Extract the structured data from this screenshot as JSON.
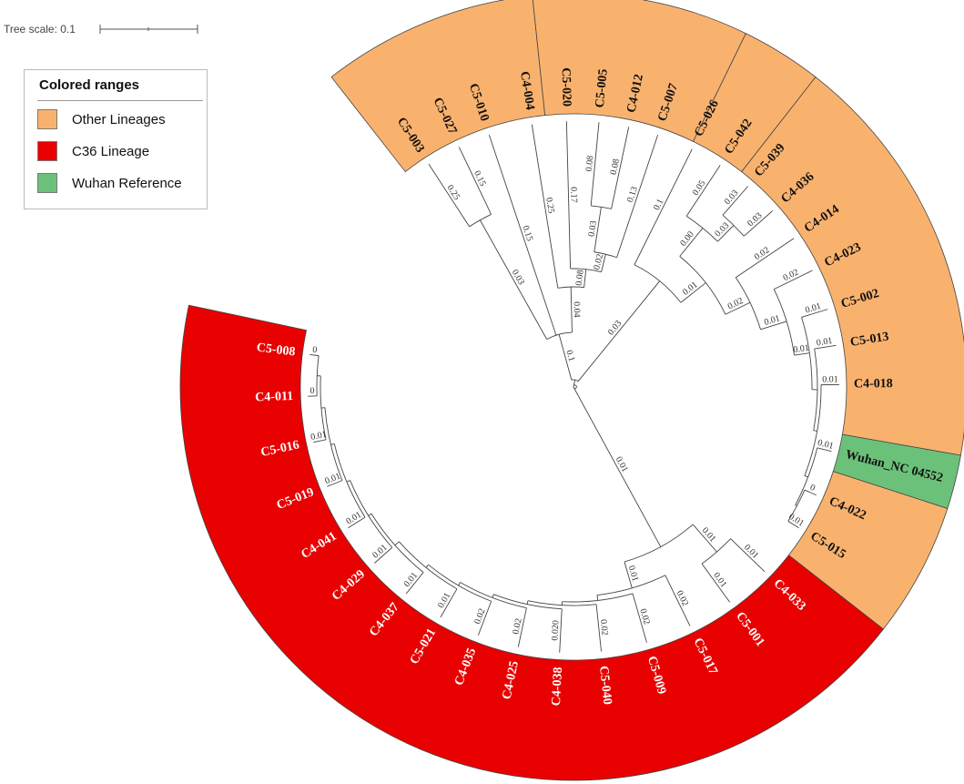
{
  "tree_scale": {
    "label": "Tree scale: 0.1"
  },
  "legend": {
    "title": "Colored ranges",
    "items": [
      {
        "label": "Other Lineages",
        "color": "#f9b26e"
      },
      {
        "label": "C36 Lineage",
        "color": "#e90000"
      },
      {
        "label": "Wuhan Reference",
        "color": "#6cc17a"
      }
    ]
  },
  "ranges": [
    {
      "group": "other",
      "color": "#f9b26e",
      "start_deg": 232,
      "end_deg": 264
    },
    {
      "group": "other",
      "color": "#f9b26e",
      "start_deg": 264,
      "end_deg": 296
    },
    {
      "group": "other",
      "color": "#f9b26e",
      "start_deg": 296,
      "end_deg": 308
    },
    {
      "group": "other",
      "color": "#f9b26e",
      "start_deg": 308,
      "end_deg": 370
    },
    {
      "group": "wuhan",
      "color": "#6cc17a",
      "start_deg": 370,
      "end_deg": 378
    },
    {
      "group": "other",
      "color": "#f9b26e",
      "start_deg": 378,
      "end_deg": 398
    },
    {
      "group": "c36",
      "color": "#e90000",
      "start_deg": 398,
      "end_deg": 552
    }
  ],
  "leaves": [
    {
      "name": "C5-003",
      "angle_deg": 237,
      "group": "other",
      "branch_length": "0.25"
    },
    {
      "name": "C5-027",
      "angle_deg": 244.5,
      "group": "other",
      "branch_length": "0.15"
    },
    {
      "name": "C5-010",
      "angle_deg": 251.5,
      "group": "other",
      "branch_length": "0.15"
    },
    {
      "name": "C4-004",
      "angle_deg": 261,
      "group": "other",
      "branch_length": "0.25"
    },
    {
      "name": "C5-020",
      "angle_deg": 268.5,
      "group": "other",
      "branch_length": "0.17"
    },
    {
      "name": "C5-005",
      "angle_deg": 275.5,
      "group": "other",
      "branch_length": "0.08"
    },
    {
      "name": "C4-012",
      "angle_deg": 282,
      "group": "other",
      "branch_length": "0.08"
    },
    {
      "name": "C5-007",
      "angle_deg": 288.5,
      "group": "other",
      "branch_length": "0.13"
    },
    {
      "name": "C5-026",
      "angle_deg": 296.5,
      "group": "other",
      "branch_length": "0.1"
    },
    {
      "name": "C5-042",
      "angle_deg": 303.5,
      "group": "other",
      "branch_length": "0.05"
    },
    {
      "name": "C5-039",
      "angle_deg": 311,
      "group": "other",
      "branch_length": "0.03"
    },
    {
      "name": "C4-036",
      "angle_deg": 318.5,
      "group": "other",
      "branch_length": "0.03"
    },
    {
      "name": "C4-014",
      "angle_deg": 326,
      "group": "other",
      "branch_length": "0.02"
    },
    {
      "name": "C4-023",
      "angle_deg": 334,
      "group": "other",
      "branch_length": "0.02"
    },
    {
      "name": "C5-002",
      "angle_deg": 343,
      "group": "other",
      "branch_length": "0.01"
    },
    {
      "name": "C5-013",
      "angle_deg": 351,
      "group": "other",
      "branch_length": "0.01"
    },
    {
      "name": "C4-018",
      "angle_deg": 359.5,
      "group": "other",
      "branch_length": "0.01"
    },
    {
      "name": "Wuhan_NC 04552",
      "angle_deg": 374,
      "group": "wuhan",
      "branch_length": "0.01"
    },
    {
      "name": "C4-022",
      "angle_deg": 384,
      "group": "other",
      "branch_length": "0"
    },
    {
      "name": "C5-015",
      "angle_deg": 392,
      "group": "other",
      "branch_length": "0.01"
    },
    {
      "name": "C4-033",
      "angle_deg": 404,
      "group": "c36",
      "branch_length": "0.01"
    },
    {
      "name": "C5-001",
      "angle_deg": 414,
      "group": "c36",
      "branch_length": "0.01"
    },
    {
      "name": "C5-017",
      "angle_deg": 424,
      "group": "c36",
      "branch_length": "0.02"
    },
    {
      "name": "C5-009",
      "angle_deg": 434,
      "group": "c36",
      "branch_length": "0.02"
    },
    {
      "name": "C5-040",
      "angle_deg": 444,
      "group": "c36",
      "branch_length": "0.02"
    },
    {
      "name": "C4-038",
      "angle_deg": 453,
      "group": "c36",
      "branch_length": "0.020"
    },
    {
      "name": "C4-025",
      "angle_deg": 462,
      "group": "c36",
      "branch_length": "0.02"
    },
    {
      "name": "C4-035",
      "angle_deg": 471,
      "group": "c36",
      "branch_length": "0.02"
    },
    {
      "name": "C5-021",
      "angle_deg": 480,
      "group": "c36",
      "branch_length": "0.01"
    },
    {
      "name": "C4-037",
      "angle_deg": 489,
      "group": "c36",
      "branch_length": "0.01"
    },
    {
      "name": "C4-029",
      "angle_deg": 498.5,
      "group": "c36",
      "branch_length": "0.01"
    },
    {
      "name": "C4-041",
      "angle_deg": 508,
      "group": "c36",
      "branch_length": "0.01"
    },
    {
      "name": "C5-019",
      "angle_deg": 518,
      "group": "c36",
      "branch_length": "0.01"
    },
    {
      "name": "C5-016",
      "angle_deg": 528,
      "group": "c36",
      "branch_length": "0.01"
    },
    {
      "name": "C4-011",
      "angle_deg": 538,
      "group": "c36",
      "branch_length": "0"
    },
    {
      "name": "C5-008",
      "angle_deg": 547,
      "group": "c36",
      "branch_length": "0"
    }
  ],
  "internal_branch_labels": [
    "0.1",
    "0.03",
    "0.04",
    "0.08",
    "0.02",
    "0.03",
    "0.03",
    "0.01",
    "0.00",
    "0.03",
    "0.02",
    "0.01",
    "0.01",
    "0.01",
    "0.01",
    "0.01",
    "0.01",
    "0.01",
    "0.01",
    "0.01",
    "0.01",
    "0.01",
    "0.02",
    "0.02"
  ],
  "label_colors": {
    "other": "#111111",
    "wuhan": "#111111",
    "c36": "#ffffff"
  }
}
